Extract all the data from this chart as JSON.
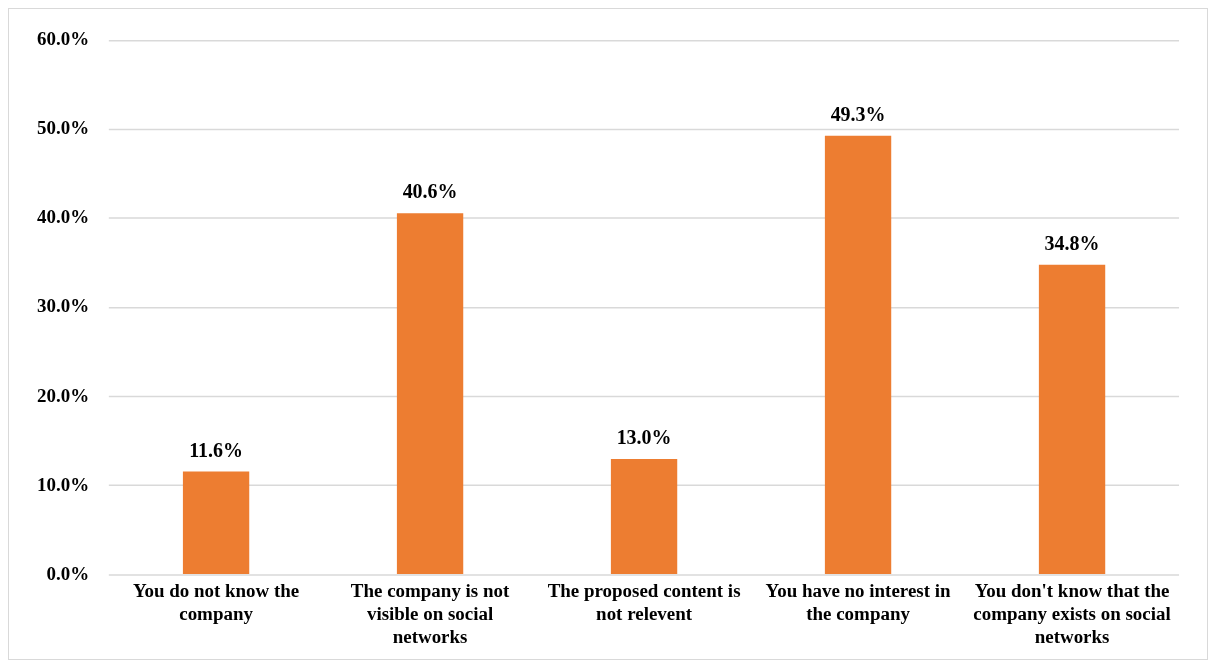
{
  "chart_data": {
    "type": "bar",
    "categories": [
      "You do not know the company",
      "The company is not visible on social networks",
      "The proposed content is not relevent",
      "You have no interest in the company",
      "You don't know that the company exists on social networks"
    ],
    "values": [
      11.6,
      40.6,
      13.0,
      49.3,
      34.8
    ],
    "value_labels": [
      "11.6%",
      "40.6%",
      "13.0%",
      "49.3%",
      "34.8%"
    ],
    "color": "#ed7d31",
    "ylim": [
      0,
      60
    ],
    "yticks": [
      {
        "value": 0,
        "label": "0.0%"
      },
      {
        "value": 10,
        "label": "10.0%"
      },
      {
        "value": 20,
        "label": "20.0%"
      },
      {
        "value": 30,
        "label": "30.0%"
      },
      {
        "value": 40,
        "label": "40.0%"
      },
      {
        "value": 50,
        "label": "50.0%"
      },
      {
        "value": 60,
        "label": "60.0%"
      }
    ],
    "grid": "y",
    "legend": false
  }
}
